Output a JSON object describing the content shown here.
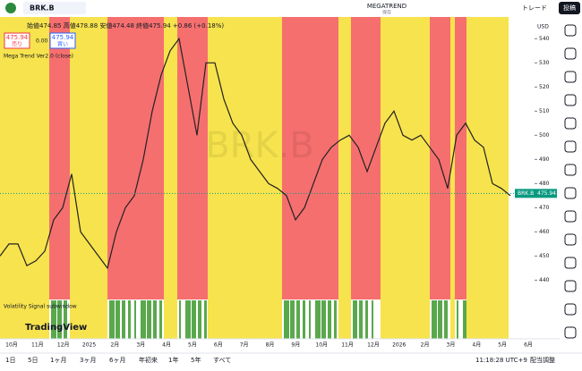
{
  "toolbar": {
    "symbol": "BRK.B",
    "indicator": "MEGATREND",
    "save": "保存",
    "trade": "トレード",
    "post": "投稿"
  },
  "legend": {
    "ohlc": "始値474.85 高値478.88 安値474.48 終値475.94 +0.86 (+0.18%)",
    "sell_price": "475.94",
    "sell": "売り",
    "spread": "0.00",
    "buy_price": "475.94",
    "buy": "買い",
    "indicator_name": "Mega Trend Ver2.0 (close)",
    "subwindow_name": "Volatility Signal subwindow"
  },
  "watermark": "BRK.B",
  "logo": "TradingView",
  "chart_data": {
    "type": "line",
    "color": "#222222",
    "currency": "USD",
    "values": [
      450,
      455,
      455,
      446,
      448,
      452,
      465,
      470,
      484,
      460,
      455,
      450,
      445,
      460,
      470,
      475,
      490,
      510,
      525,
      535,
      540,
      520,
      500,
      530,
      530,
      515,
      505,
      500,
      490,
      485,
      480,
      478,
      475,
      465,
      470,
      480,
      490,
      495,
      498,
      500,
      495,
      485,
      495,
      505,
      510,
      500,
      498,
      500,
      495,
      490,
      478,
      500,
      505,
      498,
      495,
      480,
      478,
      475
    ],
    "ylim": [
      432,
      549
    ],
    "yticks": [
      440,
      450,
      460,
      470,
      480,
      490,
      500,
      510,
      520,
      530,
      540
    ],
    "last_price": 475.94,
    "last_label": "BRK.B",
    "x_labels": [
      "10月",
      "11月",
      "12月",
      "2025",
      "2月",
      "3月",
      "4月",
      "5月",
      "6月",
      "7月",
      "8月",
      "9月",
      "10月",
      "11月",
      "12月",
      "2026",
      "2月",
      "3月",
      "4月",
      "5月",
      "6月"
    ]
  },
  "bottom_bar": {
    "ranges": [
      "1日",
      "5日",
      "1ヶ月",
      "3ヶ月",
      "6ヶ月",
      "年初来",
      "1年",
      "5年",
      "すべて"
    ],
    "clock": "11:18:28 UTC+9",
    "adjust": "配当調整"
  }
}
